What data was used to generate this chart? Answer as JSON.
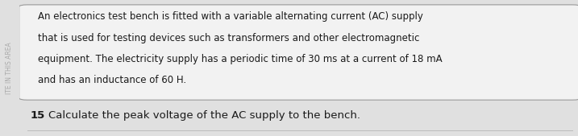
{
  "background_color": "#e0e0e0",
  "box_facecolor": "#f2f2f2",
  "box_edgecolor": "#999999",
  "sidebar_text": "ITE IN THIS AREA",
  "sidebar_bg": "#c8c8c8",
  "sidebar_text_color": "#aaaaaa",
  "paragraph_text_line1": "An electronics test bench is fitted with a variable alternating current (AC) supply",
  "paragraph_text_line2": "that is used for testing devices such as transformers and other electromagnetic",
  "paragraph_text_line3": "equipment. The electricity supply has a periodic time of 30 ms at a current of 18 mA",
  "paragraph_text_line4": "and has an inductance of 60 H.",
  "question_number": "15",
  "question_text": "Calculate the peak voltage of the AC supply to the bench.",
  "text_color": "#1a1a1a",
  "font_size_paragraph": 8.5,
  "font_size_question": 9.5,
  "bottom_line_color": "#bbbbbb"
}
